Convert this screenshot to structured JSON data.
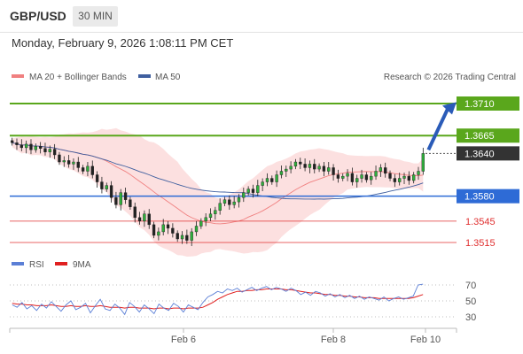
{
  "header": {
    "symbol": "GBP/USD",
    "timeframe": "30 MIN",
    "datetime": "Monday, February 9, 2026 1:08:11 PM CET"
  },
  "copyright": "Research © 2026 Trading Central",
  "chart_data": [
    {
      "type": "candlestick",
      "title": "GBP/USD",
      "timeframe": "30 MIN",
      "legend": [
        {
          "name": "MA 20 + Bollinger Bands",
          "color": "#f08080"
        },
        {
          "name": "MA 50",
          "color": "#3f5f9f"
        }
      ],
      "x_tick_labels": [
        "Feb 6",
        "Feb 8",
        "Feb 10"
      ],
      "ylim": [
        1.3505,
        1.3725
      ],
      "levels": [
        {
          "value": 1.371,
          "label": "1.3710",
          "kind": "resistance",
          "color": "#5aa71c"
        },
        {
          "value": 1.3665,
          "label": "1.3665",
          "kind": "resistance",
          "color": "#5aa71c"
        },
        {
          "value": 1.364,
          "label": "1.3640",
          "kind": "last_price",
          "color": "#333333"
        },
        {
          "value": 1.358,
          "label": "1.3580",
          "kind": "pivot",
          "color": "#2e6bd6"
        },
        {
          "value": 1.3545,
          "label": "1.3545",
          "kind": "support",
          "color": "#e03030"
        },
        {
          "value": 1.3515,
          "label": "1.3515",
          "kind": "support",
          "color": "#e03030"
        }
      ],
      "close_path": [
        1.3655,
        1.3652,
        1.3648,
        1.3653,
        1.3645,
        1.365,
        1.3647,
        1.3642,
        1.3646,
        1.3638,
        1.3628,
        1.363,
        1.3625,
        1.3628,
        1.362,
        1.3615,
        1.3622,
        1.361,
        1.36,
        1.359,
        1.3595,
        1.3578,
        1.3568,
        1.3585,
        1.3575,
        1.3565,
        1.355,
        1.3545,
        1.3555,
        1.354,
        1.3525,
        1.353,
        1.354,
        1.3535,
        1.3528,
        1.352,
        1.3525,
        1.3518,
        1.353,
        1.3538,
        1.3545,
        1.355,
        1.3555,
        1.356,
        1.357,
        1.3575,
        1.3568,
        1.3572,
        1.3578,
        1.3585,
        1.359,
        1.3585,
        1.3595,
        1.36,
        1.3605,
        1.36,
        1.361,
        1.3615,
        1.3618,
        1.3622,
        1.3628,
        1.3625,
        1.362,
        1.3625,
        1.3618,
        1.3622,
        1.3615,
        1.362,
        1.361,
        1.3605,
        1.3608,
        1.3612,
        1.36,
        1.3605,
        1.361,
        1.3603,
        1.3608,
        1.3615,
        1.362,
        1.3612,
        1.3605,
        1.36,
        1.3605,
        1.3608,
        1.3602,
        1.361,
        1.3615,
        1.364
      ]
    },
    {
      "type": "line",
      "title": "RSI",
      "legend": [
        {
          "name": "RSI",
          "color": "#5b7fd6"
        },
        {
          "name": "9MA",
          "color": "#e02020"
        }
      ],
      "y_tick_labels": [
        "70",
        "50",
        "30"
      ],
      "ylim": [
        20,
        80
      ],
      "rsi": [
        45,
        42,
        48,
        40,
        44,
        38,
        46,
        41,
        49,
        43,
        37,
        45,
        50,
        39,
        42,
        47,
        35,
        44,
        52,
        40,
        38,
        46,
        41,
        33,
        48,
        43,
        36,
        45,
        40,
        34,
        46,
        41,
        38,
        47,
        43,
        36,
        45,
        42,
        39,
        48,
        55,
        58,
        62,
        60,
        65,
        63,
        66,
        61,
        64,
        67,
        63,
        66,
        68,
        64,
        67,
        65,
        62,
        66,
        63,
        58,
        61,
        57,
        62,
        60,
        56,
        59,
        55,
        58,
        54,
        57,
        53,
        56,
        52,
        55,
        53,
        51,
        55,
        50,
        53,
        55,
        52,
        54,
        56,
        70,
        71
      ],
      "ma9": [
        47,
        46,
        46,
        45,
        45,
        44,
        44,
        44,
        45,
        44,
        43,
        43,
        44,
        43,
        43,
        44,
        43,
        43,
        44,
        43,
        42,
        42,
        42,
        41,
        42,
        42,
        41,
        41,
        41,
        40,
        41,
        41,
        40,
        41,
        41,
        40,
        41,
        41,
        41,
        42,
        45,
        48,
        52,
        55,
        58,
        60,
        62,
        62,
        63,
        63,
        64,
        64,
        65,
        65,
        65,
        65,
        64,
        64,
        63,
        62,
        61,
        60,
        60,
        59,
        58,
        58,
        57,
        57,
        56,
        56,
        55,
        55,
        54,
        54,
        54,
        53,
        53,
        53,
        53,
        53,
        53,
        53,
        54,
        56,
        58
      ]
    }
  ]
}
